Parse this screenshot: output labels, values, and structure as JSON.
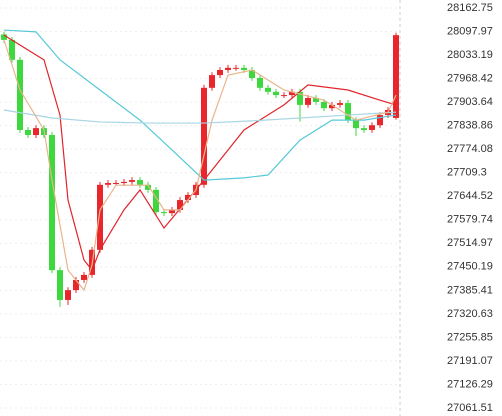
{
  "chart_data": {
    "type": "candlestick",
    "open": [
      28090,
      28075,
      28020,
      27827,
      27813,
      27832,
      27813,
      27441,
      27359,
      27386,
      27414,
      27428,
      27497,
      27676,
      27681,
      27681,
      27684,
      27689,
      27676,
      27662,
      27601,
      27598,
      27607,
      27634,
      27648,
      27676,
      27943,
      27978,
      27992,
      27998,
      27998,
      27992,
      27970,
      27943,
      27932,
      27923,
      27923,
      27932,
      27896,
      27915,
      27904,
      27887,
      27896,
      27901,
      27854,
      27832,
      27827,
      27840,
      27868,
      27860
    ],
    "high": [
      28098,
      28083,
      28028,
      27835,
      27840,
      27840,
      27821,
      27449,
      27394,
      27422,
      27436,
      27505,
      27684,
      27689,
      27689,
      27692,
      27697,
      27697,
      27684,
      27670,
      27609,
      27615,
      27642,
      27656,
      27684,
      27951,
      27986,
      28000,
      28006,
      28006,
      28006,
      28000,
      27978,
      27951,
      27940,
      27931,
      27940,
      27940,
      27923,
      27923,
      27912,
      27904,
      27909,
      27909,
      27862,
      27840,
      27848,
      27876,
      27890,
      28095
    ],
    "low": [
      28067,
      28012,
      27819,
      27805,
      27805,
      27805,
      27433,
      27340,
      27345,
      27378,
      27406,
      27420,
      27489,
      27668,
      27673,
      27673,
      27676,
      27668,
      27654,
      27593,
      27590,
      27590,
      27599,
      27626,
      27640,
      27668,
      27935,
      27970,
      27984,
      27990,
      27984,
      27962,
      27935,
      27924,
      27915,
      27915,
      27915,
      27850,
      27888,
      27896,
      27879,
      27879,
      27888,
      27846,
      27810,
      27819,
      27819,
      27832,
      27860,
      27855
    ],
    "close": [
      28075,
      28020,
      27827,
      27813,
      27832,
      27813,
      27441,
      27359,
      27386,
      27414,
      27428,
      27497,
      27676,
      27681,
      27681,
      27684,
      27689,
      27676,
      27662,
      27601,
      27598,
      27607,
      27634,
      27648,
      27676,
      27943,
      27978,
      27992,
      27998,
      27998,
      27992,
      27970,
      27943,
      27932,
      27923,
      27923,
      27932,
      27896,
      27915,
      27904,
      27887,
      27896,
      27901,
      27854,
      27832,
      27827,
      27840,
      27868,
      27882,
      28088
    ],
    "up_color": "#e8262b",
    "down_color": "#3dd83d",
    "lines": [
      {
        "color": "#e0252b",
        "x": [
          0,
          5,
          7,
          8,
          10,
          11,
          12,
          15,
          17,
          20,
          25,
          30,
          35,
          38,
          43,
          47,
          49
        ],
        "values": [
          28088,
          28020,
          27868,
          27634,
          27469,
          27441,
          27497,
          27607,
          27662,
          27557,
          27689,
          27827,
          27896,
          27951,
          27937,
          27909,
          27896
        ]
      },
      {
        "color": "#56c8d8",
        "x": [
          0,
          4,
          7,
          12,
          17,
          21,
          25,
          30,
          33,
          37,
          41,
          45,
          49
        ],
        "values": [
          28102,
          28097,
          28020,
          27937,
          27854,
          27772,
          27689,
          27695,
          27703,
          27799,
          27854,
          27854,
          27868
        ]
      },
      {
        "color": "#a8d6e4",
        "x": [
          0,
          6,
          12,
          18,
          25,
          31,
          37,
          43,
          49
        ],
        "values": [
          27882,
          27860,
          27849,
          27846,
          27846,
          27852,
          27860,
          27868,
          27876
        ]
      },
      {
        "color": "#e8b48c",
        "x": [
          0,
          2,
          5,
          6,
          8,
          10,
          11,
          12,
          14,
          18,
          20,
          22,
          24,
          26,
          28,
          31,
          35,
          40,
          44,
          48,
          49
        ],
        "values": [
          28075,
          27937,
          27827,
          27689,
          27441,
          27386,
          27455,
          27607,
          27675,
          27675,
          27607,
          27607,
          27662,
          27854,
          27978,
          27992,
          27937,
          27909,
          27854,
          27876,
          27923
        ]
      }
    ],
    "ylim": [
      27061.51,
      28162.75
    ],
    "yticks": [
      28162.75,
      28097.97,
      28033.19,
      27968.42,
      27903.64,
      27838.86,
      27774.08,
      27709.3,
      27644.52,
      27579.74,
      27514.97,
      27450.19,
      27385.41,
      27320.63,
      27255.85,
      27191.07,
      27126.29,
      27061.51
    ],
    "grid": true
  }
}
